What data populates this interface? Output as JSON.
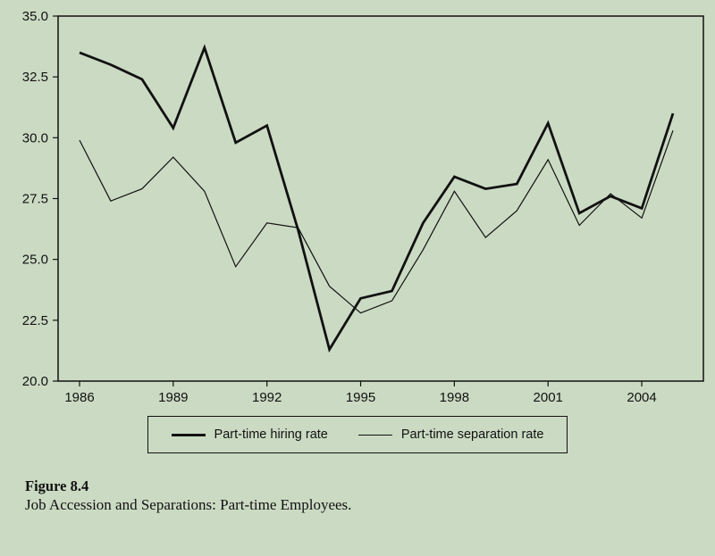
{
  "figure": {
    "label": "Figure 8.4",
    "caption": "Job Accession and Separations: Part-time Employees."
  },
  "legend": {
    "hiring": "Part-time hiring rate",
    "separation": "Part-time separation rate"
  },
  "colors": {
    "background": "#cbdbc3",
    "line": "#111111"
  },
  "chart_data": {
    "type": "line",
    "x": [
      1986,
      1987,
      1988,
      1989,
      1990,
      1991,
      1992,
      1993,
      1994,
      1995,
      1996,
      1997,
      1998,
      1999,
      2000,
      2001,
      2002,
      2003,
      2004,
      2005
    ],
    "series": [
      {
        "name": "Part-time hiring rate",
        "values": [
          33.5,
          33.0,
          32.4,
          30.4,
          33.7,
          29.8,
          30.5,
          26.2,
          21.3,
          23.4,
          23.7,
          26.5,
          28.4,
          27.9,
          28.1,
          30.6,
          26.9,
          27.6,
          27.1,
          31.0
        ]
      },
      {
        "name": "Part-time separation rate",
        "values": [
          29.9,
          27.4,
          27.9,
          29.2,
          27.8,
          24.7,
          26.5,
          26.3,
          23.9,
          22.8,
          23.3,
          25.4,
          27.8,
          25.9,
          27.0,
          29.1,
          26.4,
          27.7,
          26.7,
          30.3
        ]
      }
    ],
    "ylim": [
      20.0,
      35.0
    ],
    "yticks": [
      20.0,
      22.5,
      25.0,
      27.5,
      30.0,
      32.5,
      35.0
    ],
    "xticks": [
      1986,
      1989,
      1992,
      1995,
      1998,
      2001,
      2004
    ],
    "grid": false,
    "legend_position": "bottom",
    "title": "",
    "xlabel": "",
    "ylabel": ""
  }
}
